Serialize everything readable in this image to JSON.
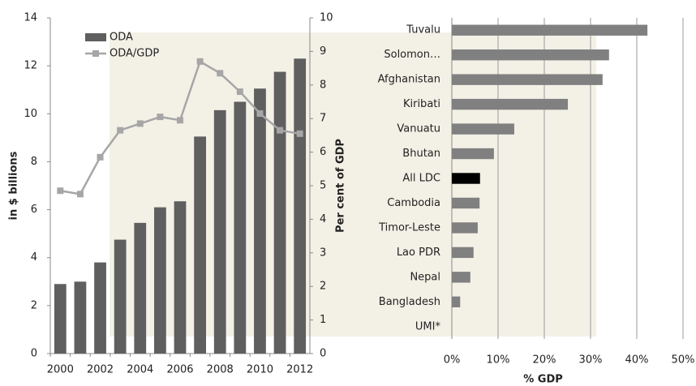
{
  "chart_data": [
    {
      "type": "bar",
      "categories": [
        "2000",
        null,
        "2002",
        null,
        "2004",
        null,
        "2006",
        null,
        "2008",
        null,
        "2010",
        null,
        "2012"
      ],
      "series": [
        {
          "name": "ODA",
          "color": "#5f5f5f",
          "values": [
            2.9,
            3.0,
            3.8,
            4.75,
            5.45,
            6.1,
            6.35,
            9.05,
            10.15,
            10.5,
            11.05,
            11.75,
            12.3
          ]
        },
        {
          "name": "ODA/GDP",
          "type": "line",
          "axis": "y2",
          "color": "#a6a6a6",
          "values": [
            4.85,
            4.75,
            5.85,
            6.65,
            6.85,
            7.05,
            6.95,
            8.7,
            8.35,
            7.8,
            7.15,
            6.65,
            6.55
          ]
        }
      ],
      "ylabel": "in $ billions",
      "y2label": "Per cent of GDP",
      "ylim": [
        0,
        14
      ],
      "yticks": [
        0,
        2,
        4,
        6,
        8,
        10,
        12,
        14
      ],
      "y2lim": [
        0,
        10
      ],
      "y2ticks": [
        0,
        1,
        2,
        3,
        4,
        5,
        6,
        7,
        8,
        9,
        10
      ],
      "legend": "top-left",
      "grid": false
    },
    {
      "type": "barh",
      "categories": [
        "Tuvalu",
        "Solomon…",
        "Afghanistan",
        "Kiribati",
        "Vanuatu",
        "Bhutan",
        "All LDC",
        "Cambodia",
        "Timor-Leste",
        "Lao PDR",
        "Nepal",
        "Bangladesh",
        "UMI*"
      ],
      "values": [
        42.3,
        34,
        32.6,
        25.1,
        13.5,
        9.1,
        6.1,
        6,
        5.6,
        4.7,
        4,
        1.8,
        0
      ],
      "colors": [
        "#808080",
        "#808080",
        "#808080",
        "#808080",
        "#808080",
        "#808080",
        "#000000",
        "#808080",
        "#808080",
        "#808080",
        "#808080",
        "#808080",
        "#808080"
      ],
      "xlabel": "% GDP",
      "xlim": [
        0,
        50
      ],
      "xticks": [
        {
          "value": 0,
          "label": "0%"
        },
        {
          "value": 10,
          "label": "10%"
        },
        {
          "value": 20,
          "label": "20%"
        },
        {
          "value": 30,
          "label": "30%"
        },
        {
          "value": 40,
          "label": "40%"
        },
        {
          "value": 50,
          "label": "50%"
        }
      ],
      "grid": true
    }
  ]
}
